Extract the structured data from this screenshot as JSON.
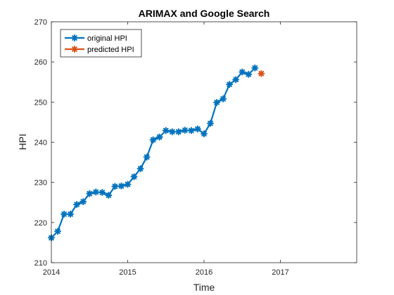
{
  "chart_data": {
    "type": "line",
    "title": "ARIMAX and Google Search",
    "xlabel": "Time",
    "ylabel": "HPI",
    "xlim": [
      2014,
      2018
    ],
    "ylim": [
      210,
      270
    ],
    "xticks": [
      2014,
      2015,
      2016,
      2017
    ],
    "yticks": [
      210,
      220,
      230,
      240,
      250,
      260,
      270
    ],
    "grid": false,
    "legend_position": "top-left",
    "series": [
      {
        "name": "original HPI",
        "color": "#0072BD",
        "marker": "asterisk",
        "x": [
          2014.0,
          2014.0833,
          2014.1667,
          2014.25,
          2014.3333,
          2014.4167,
          2014.5,
          2014.5833,
          2014.6667,
          2014.75,
          2014.8333,
          2014.9167,
          2015.0,
          2015.0833,
          2015.1667,
          2015.25,
          2015.3333,
          2015.4167,
          2015.5,
          2015.5833,
          2015.6667,
          2015.75,
          2015.8333,
          2015.9167,
          2016.0,
          2016.0833,
          2016.1667,
          2016.25,
          2016.3333,
          2016.4167,
          2016.5,
          2016.5833,
          2016.6667
        ],
        "values": [
          216.2,
          217.8,
          222.1,
          222.1,
          224.5,
          225.2,
          227.2,
          227.6,
          227.5,
          226.8,
          229.0,
          229.1,
          229.5,
          231.4,
          233.4,
          236.3,
          240.6,
          241.3,
          242.9,
          242.6,
          242.6,
          243.0,
          242.9,
          243.3,
          242.1,
          244.7,
          249.9,
          250.8,
          254.4,
          255.6,
          257.5,
          256.9,
          258.5
        ]
      },
      {
        "name": "predicted HPI",
        "color": "#D95319",
        "marker": "asterisk",
        "x": [
          2016.75
        ],
        "values": [
          257.1
        ]
      }
    ]
  }
}
